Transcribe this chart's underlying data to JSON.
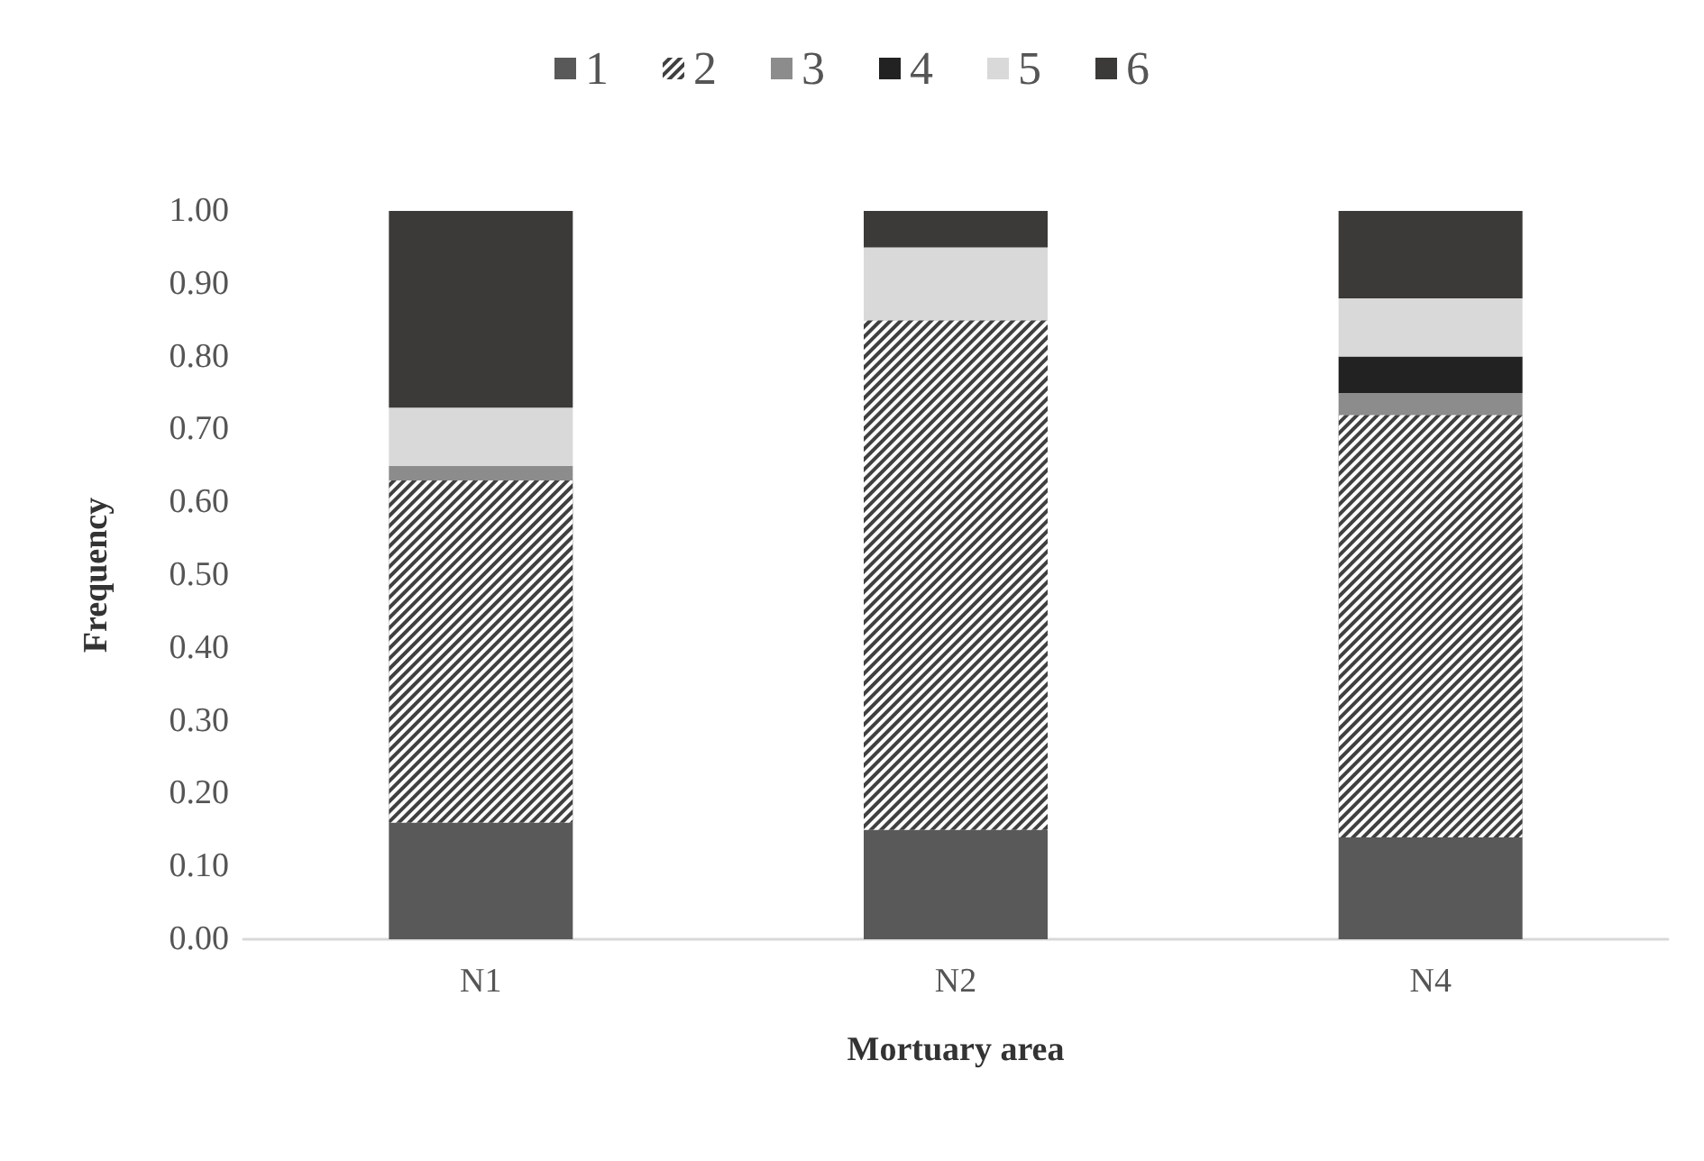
{
  "chart_data": {
    "type": "bar",
    "stacked": true,
    "xlabel": "Mortuary area",
    "ylabel": "Frequency",
    "categories": [
      "N1",
      "N2",
      "N4"
    ],
    "series": [
      {
        "name": "1",
        "color": "#595959",
        "values": [
          0.16,
          0.15,
          0.14
        ]
      },
      {
        "name": "2",
        "color": "#404040",
        "values": [
          0.47,
          0.7,
          0.58
        ]
      },
      {
        "name": "3",
        "color": "#8c8c8c",
        "values": [
          0.02,
          0,
          0.03
        ]
      },
      {
        "name": "4",
        "color": "#222222",
        "values": [
          0,
          0,
          0.05
        ]
      },
      {
        "name": "5",
        "color": "#d9d9d9",
        "values": [
          0.08,
          0.1,
          0.08
        ]
      },
      {
        "name": "6",
        "color": "#3b3a38",
        "values": [
          0.27,
          0.05,
          0.12
        ]
      }
    ],
    "ylim": [
      0,
      1
    ],
    "yticks": [
      {
        "value": 0,
        "label": "0.00"
      },
      {
        "value": 0.1,
        "label": "0.10"
      },
      {
        "value": 0.2,
        "label": "0.20"
      },
      {
        "value": 0.3,
        "label": "0.30"
      },
      {
        "value": 0.4,
        "label": "0.40"
      },
      {
        "value": 0.5,
        "label": "0.50"
      },
      {
        "value": 0.6,
        "label": "0.60"
      },
      {
        "value": 0.7,
        "label": "0.70"
      },
      {
        "value": 0.8,
        "label": "0.80"
      },
      {
        "value": 0.9,
        "label": "0.90"
      },
      {
        "value": 1,
        "label": "1.00"
      }
    ],
    "grid": false,
    "legend": "top"
  }
}
